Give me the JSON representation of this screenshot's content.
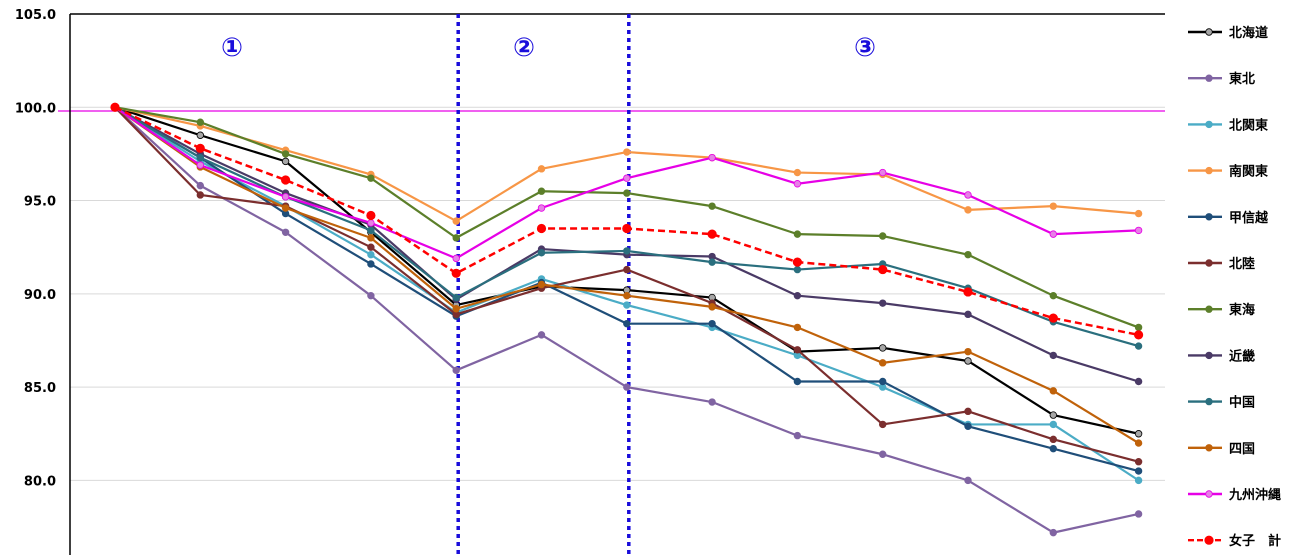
{
  "chart_data": {
    "type": "line",
    "title": "",
    "xlabel": "",
    "ylabel": "",
    "ylim": [
      76.0,
      105.0
    ],
    "yticks": [
      80.0,
      85.0,
      90.0,
      95.0,
      100.0,
      105.0
    ],
    "ytick_labels": [
      "80.0",
      "85.0",
      "90.0",
      "95.0",
      "100.0",
      "105.0"
    ],
    "grid": "horizontal",
    "legend_position": "right",
    "x": [
      0,
      1,
      2,
      3,
      4,
      5,
      6,
      7,
      8,
      9,
      10,
      11,
      12
    ],
    "reference_line": {
      "value": 99.8,
      "color": "#e600e6"
    },
    "phase_dividers": [
      4,
      6
    ],
    "phase_labels": [
      "①",
      "②",
      "③"
    ],
    "series": [
      {
        "name": "北海道",
        "color": "#000000",
        "marker_fill": "#a6a6a6",
        "dashed": false,
        "values": [
          100.0,
          98.5,
          97.1,
          93.3,
          89.4,
          90.4,
          90.2,
          89.8,
          86.9,
          87.1,
          86.4,
          83.5,
          82.5
        ]
      },
      {
        "name": "東北",
        "color": "#8064a2",
        "marker_fill": "#8064a2",
        "dashed": false,
        "values": [
          100.0,
          95.8,
          93.3,
          89.9,
          85.9,
          87.8,
          85.0,
          84.2,
          82.4,
          81.4,
          80.0,
          77.2,
          78.2
        ]
      },
      {
        "name": "北関東",
        "color": "#4bacc6",
        "marker_fill": "#4bacc6",
        "dashed": false,
        "values": [
          100.0,
          97.1,
          94.7,
          92.1,
          89.0,
          90.8,
          89.4,
          88.2,
          86.7,
          85.0,
          83.0,
          83.0,
          80.0
        ]
      },
      {
        "name": "南関東",
        "color": "#f79646",
        "marker_fill": "#f79646",
        "dashed": false,
        "values": [
          100.0,
          99.0,
          97.7,
          96.4,
          93.9,
          96.7,
          97.6,
          97.3,
          96.5,
          96.4,
          94.5,
          94.7,
          94.3
        ]
      },
      {
        "name": "甲信越",
        "color": "#1f4e79",
        "marker_fill": "#1f4e79",
        "dashed": false,
        "values": [
          100.0,
          97.3,
          94.3,
          91.6,
          88.8,
          90.6,
          88.4,
          88.4,
          85.3,
          85.3,
          82.9,
          81.7,
          80.5
        ]
      },
      {
        "name": "北陸",
        "color": "#7b2e2e",
        "marker_fill": "#7b2e2e",
        "dashed": false,
        "values": [
          100.0,
          95.3,
          94.7,
          92.5,
          88.9,
          90.3,
          91.3,
          89.5,
          87.0,
          83.0,
          83.7,
          82.2,
          81.0
        ]
      },
      {
        "name": "東海",
        "color": "#5c7f2a",
        "marker_fill": "#5c7f2a",
        "dashed": false,
        "values": [
          100.0,
          99.2,
          97.5,
          96.2,
          93.0,
          95.5,
          95.4,
          94.7,
          93.2,
          93.1,
          92.1,
          89.9,
          88.2
        ]
      },
      {
        "name": "近畿",
        "color": "#4a3a66",
        "marker_fill": "#4a3a66",
        "dashed": false,
        "values": [
          100.0,
          97.5,
          95.4,
          93.7,
          89.7,
          92.4,
          92.1,
          92.0,
          89.9,
          89.5,
          88.9,
          86.7,
          85.3
        ]
      },
      {
        "name": "中国",
        "color": "#2a6f7e",
        "marker_fill": "#2a6f7e",
        "dashed": false,
        "values": [
          100.0,
          97.3,
          95.2,
          93.4,
          89.8,
          92.2,
          92.3,
          91.7,
          91.3,
          91.6,
          90.3,
          88.5,
          87.2
        ]
      },
      {
        "name": "四国",
        "color": "#c0620a",
        "marker_fill": "#c0620a",
        "dashed": false,
        "values": [
          100.0,
          96.8,
          94.6,
          93.0,
          89.2,
          90.5,
          89.9,
          89.3,
          88.2,
          86.3,
          86.9,
          84.8,
          82.0
        ]
      },
      {
        "name": "九州沖縄",
        "color": "#e600e6",
        "marker_fill": "#e680e6",
        "dashed": false,
        "values": [
          100.0,
          96.9,
          95.2,
          93.8,
          91.9,
          94.6,
          96.2,
          97.3,
          95.9,
          96.5,
          95.3,
          93.2,
          93.4
        ]
      },
      {
        "name": "女子　計",
        "color": "#ff0000",
        "marker_fill": "#ff0000",
        "dashed": true,
        "values": [
          100.0,
          97.8,
          96.1,
          94.2,
          91.1,
          93.5,
          93.5,
          93.2,
          91.7,
          91.3,
          90.1,
          88.7,
          87.8
        ]
      }
    ]
  }
}
